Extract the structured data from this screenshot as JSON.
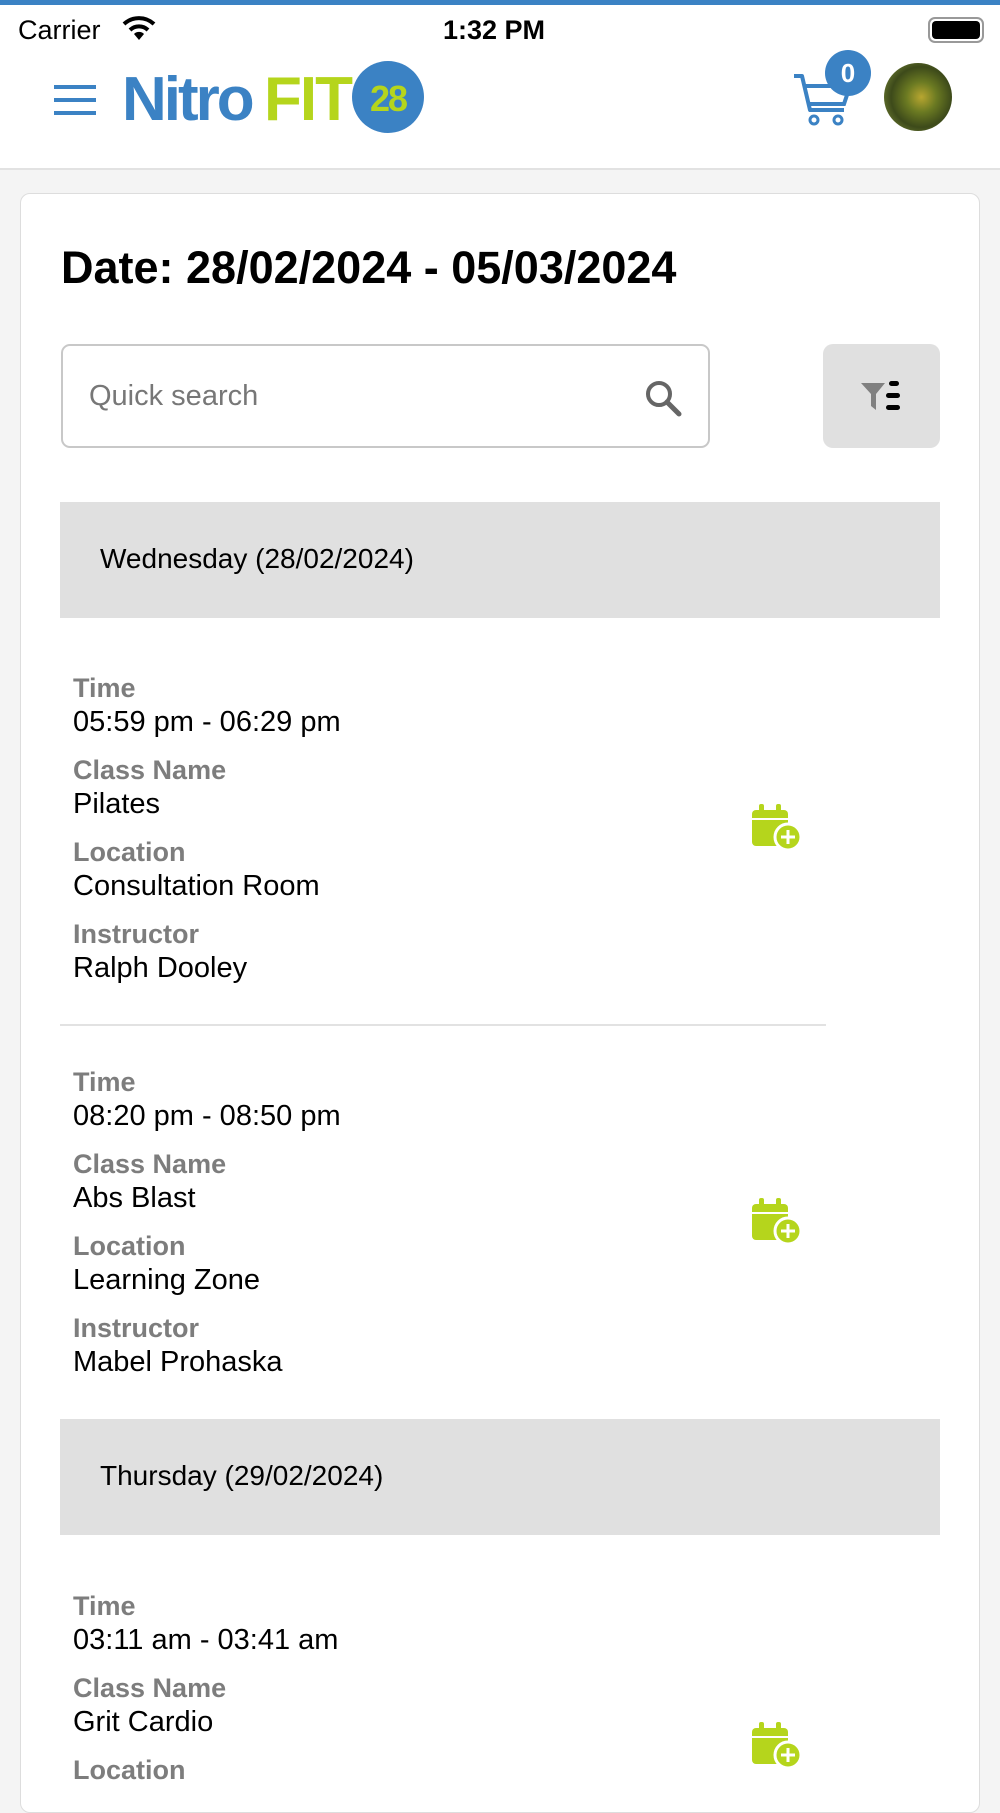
{
  "status_bar": {
    "carrier": "Carrier",
    "time": "1:32 PM"
  },
  "header": {
    "logo_text_a": "Nitro",
    "logo_text_b": "FIT",
    "logo_text_c": "28",
    "cart_count": "0"
  },
  "colors": {
    "brand_blue": "#3b82c4",
    "brand_green": "#b5d51c"
  },
  "page": {
    "title": "Date: 28/02/2024 - 05/03/2024",
    "search_placeholder": "Quick search"
  },
  "labels": {
    "time": "Time",
    "class_name": "Class Name",
    "location": "Location",
    "instructor": "Instructor"
  },
  "days": [
    {
      "header": "Wednesday (28/02/2024)",
      "classes": [
        {
          "time": "05:59 pm - 06:29 pm",
          "class_name": "Pilates",
          "location": "Consultation Room",
          "instructor": "Ralph Dooley"
        },
        {
          "time": "08:20 pm - 08:50 pm",
          "class_name": "Abs Blast",
          "location": "Learning Zone",
          "instructor": "Mabel Prohaska"
        }
      ]
    },
    {
      "header": "Thursday (29/02/2024)",
      "classes": [
        {
          "time": "03:11 am - 03:41 am",
          "class_name": "Grit Cardio"
        }
      ]
    }
  ]
}
